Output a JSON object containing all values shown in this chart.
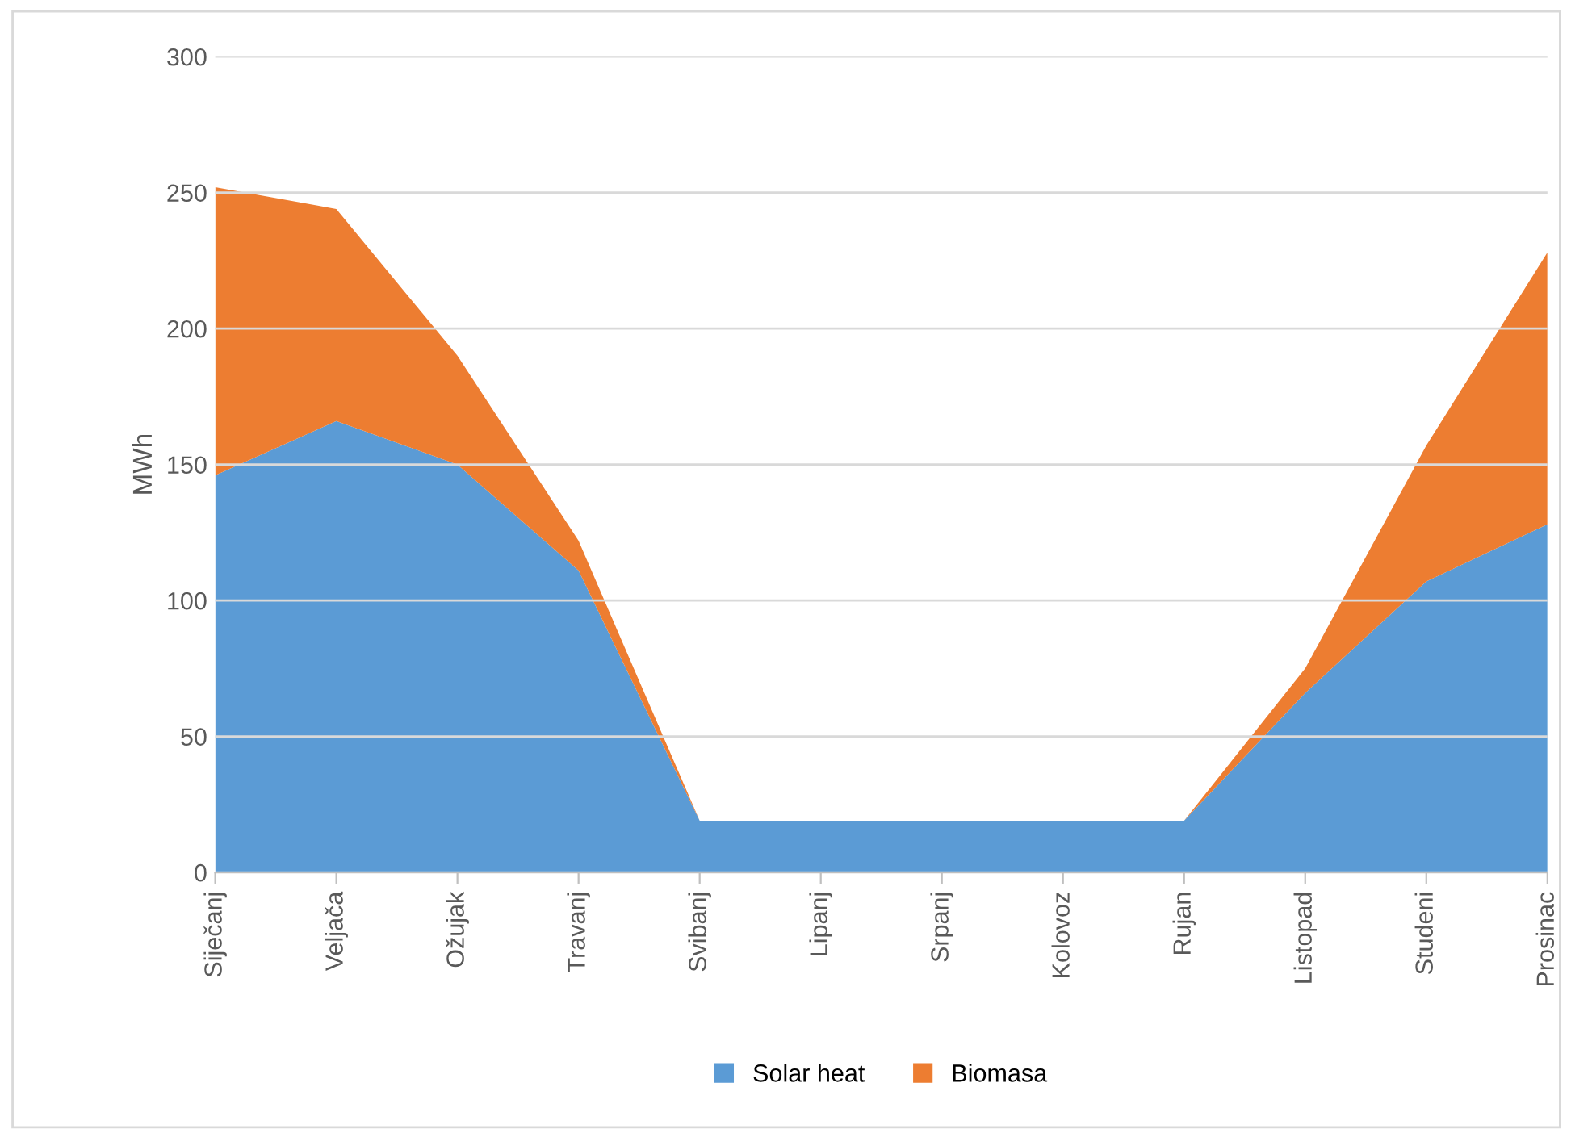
{
  "chart_data": {
    "type": "area",
    "stacked": true,
    "ylabel": "MWh",
    "categories": [
      "Siječanj",
      "Veljača",
      "Ožujak",
      "Travanj",
      "Svibanj",
      "Lipanj",
      "Srpanj",
      "Kolovoz",
      "Rujan",
      "Listopad",
      "Studeni",
      "Prosinac"
    ],
    "series": [
      {
        "name": "Solar heat",
        "color": "#5b9bd5",
        "values": [
          146,
          166,
          150,
          111,
          19,
          19,
          19,
          19,
          19,
          66,
          107,
          128
        ]
      },
      {
        "name": "Biomasa",
        "color": "#ed7d31",
        "values": [
          106,
          78,
          40,
          11,
          0,
          0,
          0,
          0,
          0,
          9,
          50,
          100
        ]
      }
    ],
    "ylim": [
      0,
      300
    ],
    "yticks": [
      0,
      50,
      100,
      150,
      200,
      250,
      300
    ],
    "grid": "y",
    "legend": "bottom"
  }
}
